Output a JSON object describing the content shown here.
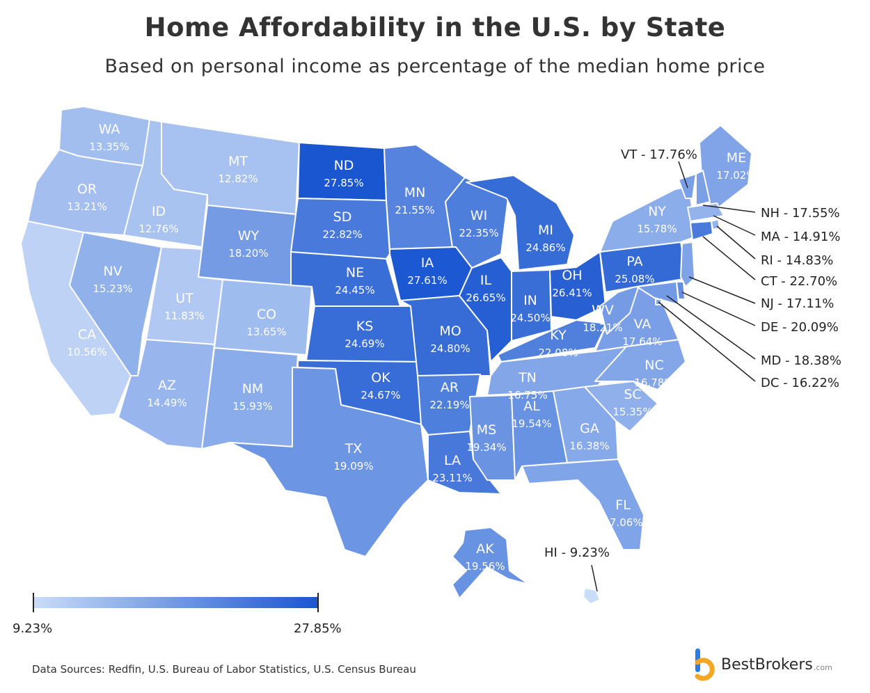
{
  "title": "Home Affordability in the U.S. by State",
  "subtitle": "Based on personal income as percentage of the median home price",
  "legend": {
    "min_label": "9.23%",
    "max_label": "27.85%",
    "min_color": "#c9dcf8",
    "max_color": "#1a56d0"
  },
  "source": "Data Sources: Redfin, U.S. Bureau of Labor Statistics, U.S. Census Bureau",
  "brand": {
    "name": "BestBrokers",
    "domain": ".com"
  },
  "states": [
    {
      "abbr": "WA",
      "value": "13.35%",
      "v": 13.35
    },
    {
      "abbr": "OR",
      "value": "13.21%",
      "v": 13.21
    },
    {
      "abbr": "CA",
      "value": "10.56%",
      "v": 10.56
    },
    {
      "abbr": "ID",
      "value": "12.76%",
      "v": 12.76
    },
    {
      "abbr": "NV",
      "value": "15.23%",
      "v": 15.23
    },
    {
      "abbr": "MT",
      "value": "12.82%",
      "v": 12.82
    },
    {
      "abbr": "WY",
      "value": "18.20%",
      "v": 18.2
    },
    {
      "abbr": "UT",
      "value": "11.83%",
      "v": 11.83
    },
    {
      "abbr": "AZ",
      "value": "14.49%",
      "v": 14.49
    },
    {
      "abbr": "CO",
      "value": "13.65%",
      "v": 13.65
    },
    {
      "abbr": "NM",
      "value": "15.93%",
      "v": 15.93
    },
    {
      "abbr": "ND",
      "value": "27.85%",
      "v": 27.85
    },
    {
      "abbr": "SD",
      "value": "22.82%",
      "v": 22.82
    },
    {
      "abbr": "NE",
      "value": "24.45%",
      "v": 24.45
    },
    {
      "abbr": "KS",
      "value": "24.69%",
      "v": 24.69
    },
    {
      "abbr": "OK",
      "value": "24.67%",
      "v": 24.67
    },
    {
      "abbr": "TX",
      "value": "19.09%",
      "v": 19.09
    },
    {
      "abbr": "MN",
      "value": "21.55%",
      "v": 21.55
    },
    {
      "abbr": "IA",
      "value": "27.61%",
      "v": 27.61
    },
    {
      "abbr": "MO",
      "value": "24.80%",
      "v": 24.8
    },
    {
      "abbr": "AR",
      "value": "22.19%",
      "v": 22.19
    },
    {
      "abbr": "LA",
      "value": "23.11%",
      "v": 23.11
    },
    {
      "abbr": "WI",
      "value": "22.35%",
      "v": 22.35
    },
    {
      "abbr": "IL",
      "value": "26.65%",
      "v": 26.65
    },
    {
      "abbr": "MI",
      "value": "24.86%",
      "v": 24.86
    },
    {
      "abbr": "IN",
      "value": "24.50%",
      "v": 24.5
    },
    {
      "abbr": "OH",
      "value": "26.41%",
      "v": 26.41
    },
    {
      "abbr": "KY",
      "value": "22.08%",
      "v": 22.08
    },
    {
      "abbr": "TN",
      "value": "16.75%",
      "v": 16.75
    },
    {
      "abbr": "MS",
      "value": "19.34%",
      "v": 19.34
    },
    {
      "abbr": "AL",
      "value": "19.54%",
      "v": 19.54
    },
    {
      "abbr": "GA",
      "value": "16.38%",
      "v": 16.38
    },
    {
      "abbr": "FL",
      "value": "17.06%",
      "v": 17.06
    },
    {
      "abbr": "SC",
      "value": "15.35%",
      "v": 15.35
    },
    {
      "abbr": "NC",
      "value": "16.78%",
      "v": 16.78
    },
    {
      "abbr": "VA",
      "value": "17.64%",
      "v": 17.64
    },
    {
      "abbr": "WV",
      "value": "18.21%",
      "v": 18.21
    },
    {
      "abbr": "PA",
      "value": "25.08%",
      "v": 25.08
    },
    {
      "abbr": "NY",
      "value": "15.78%",
      "v": 15.78
    },
    {
      "abbr": "ME",
      "value": "17.02%",
      "v": 17.02
    },
    {
      "abbr": "AK",
      "value": "19.56%",
      "v": 19.56
    }
  ],
  "callouts": [
    {
      "abbr": "VT",
      "text": "VT - 17.76%",
      "v": 17.76
    },
    {
      "abbr": "NH",
      "text": "NH - 17.55%",
      "v": 17.55
    },
    {
      "abbr": "MA",
      "text": "MA - 14.91%",
      "v": 14.91
    },
    {
      "abbr": "RI",
      "text": "RI - 14.83%",
      "v": 14.83
    },
    {
      "abbr": "CT",
      "text": "CT - 22.70%",
      "v": 22.7
    },
    {
      "abbr": "NJ",
      "text": "NJ - 17.11%",
      "v": 17.11
    },
    {
      "abbr": "DE",
      "text": "DE - 20.09%",
      "v": 20.09
    },
    {
      "abbr": "MD",
      "text": "MD - 18.38%",
      "v": 18.38
    },
    {
      "abbr": "DC",
      "text": "DC - 16.22%",
      "v": 16.22
    },
    {
      "abbr": "HI",
      "text": "HI - 9.23%",
      "v": 9.23
    }
  ]
}
